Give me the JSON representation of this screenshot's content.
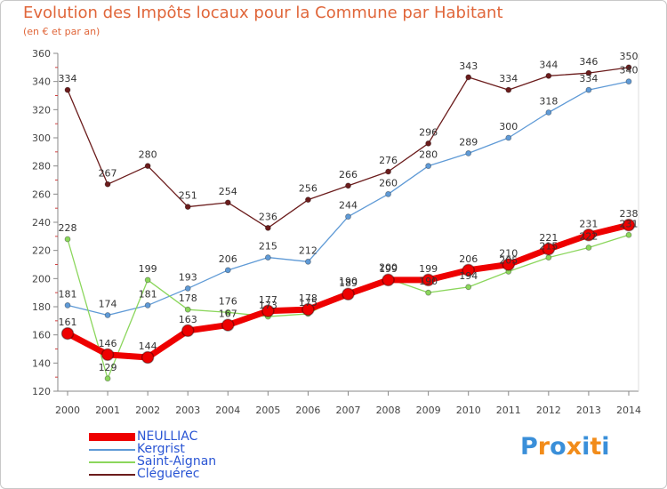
{
  "chart_data": {
    "type": "line",
    "title": "Evolution des Impôts locaux pour la Commune par Habitant",
    "subtitle": "(en € et par an)",
    "xlabel": "",
    "ylabel": "",
    "x": [
      "2000",
      "2001",
      "2002",
      "2003",
      "2004",
      "2005",
      "2006",
      "2007",
      "2008",
      "2009",
      "2010",
      "2011",
      "2012",
      "2013",
      "2014"
    ],
    "ylim": [
      120,
      360
    ],
    "yticks": [
      120,
      140,
      160,
      180,
      200,
      220,
      240,
      260,
      280,
      300,
      320,
      340,
      360
    ],
    "grid": false,
    "legend_position": "bottom-left",
    "series": [
      {
        "name": "Cléguérec",
        "color": "#6b1c1c",
        "values": [
          334,
          267,
          280,
          251,
          254,
          236,
          256,
          266,
          276,
          296,
          343,
          334,
          344,
          346,
          350
        ]
      },
      {
        "name": "Kergrist",
        "color": "#5f9ad6",
        "values": [
          181,
          174,
          181,
          193,
          206,
          215,
          212,
          244,
          260,
          280,
          289,
          300,
          318,
          334,
          340
        ]
      },
      {
        "name": "Saint-Aignan",
        "color": "#8bd65c",
        "values": [
          228,
          129,
          199,
          178,
          176,
          173,
          175,
          190,
          200,
          190,
          194,
          205,
          215,
          222,
          231
        ]
      },
      {
        "name": "NEULLIAC",
        "color": "#ee0000",
        "values": [
          161,
          146,
          144,
          163,
          167,
          177,
          178,
          189,
          199,
          199,
          206,
          210,
          221,
          231,
          238
        ]
      }
    ],
    "data_labels": [
      {
        "series": "Cléguérec",
        "values": [
          "334",
          "267",
          "280",
          "251",
          "254",
          "236",
          "256",
          "266",
          "276",
          "296",
          "343",
          "334",
          "344",
          "346",
          "350"
        ]
      },
      {
        "series": "Kergrist",
        "values": [
          "181",
          "174",
          "181",
          "193",
          "206",
          "215",
          "212",
          "244",
          "260",
          "280",
          "289",
          "300",
          "318",
          "334",
          "340"
        ]
      },
      {
        "series": "Saint-Aignan",
        "values": [
          "228",
          "129",
          "199",
          "178",
          "176",
          "173",
          "175",
          "190",
          "200",
          "190",
          "194",
          "205",
          "215",
          "222",
          "231"
        ]
      },
      {
        "series": "NEULLIAC",
        "values": [
          "161",
          "146",
          "144",
          "163",
          "167",
          "177",
          "178",
          "189",
          "199",
          "199",
          "206",
          "210",
          "221",
          "231",
          "238"
        ]
      }
    ]
  },
  "legend": {
    "items": [
      {
        "name": "NEULLIAC",
        "color": "#ee0000"
      },
      {
        "name": "Kergrist",
        "color": "#5f9ad6"
      },
      {
        "name": "Saint-Aignan",
        "color": "#8bd65c"
      },
      {
        "name": "Cléguérec",
        "color": "#6b1c1c"
      }
    ]
  },
  "logo": {
    "text": "Proxiti",
    "letter_colors": [
      "#3a8fd9",
      "#f28c1a",
      "#3a8fd9",
      "#f28c1a",
      "#3a8fd9",
      "#f28c1a",
      "#3a8fd9"
    ]
  }
}
